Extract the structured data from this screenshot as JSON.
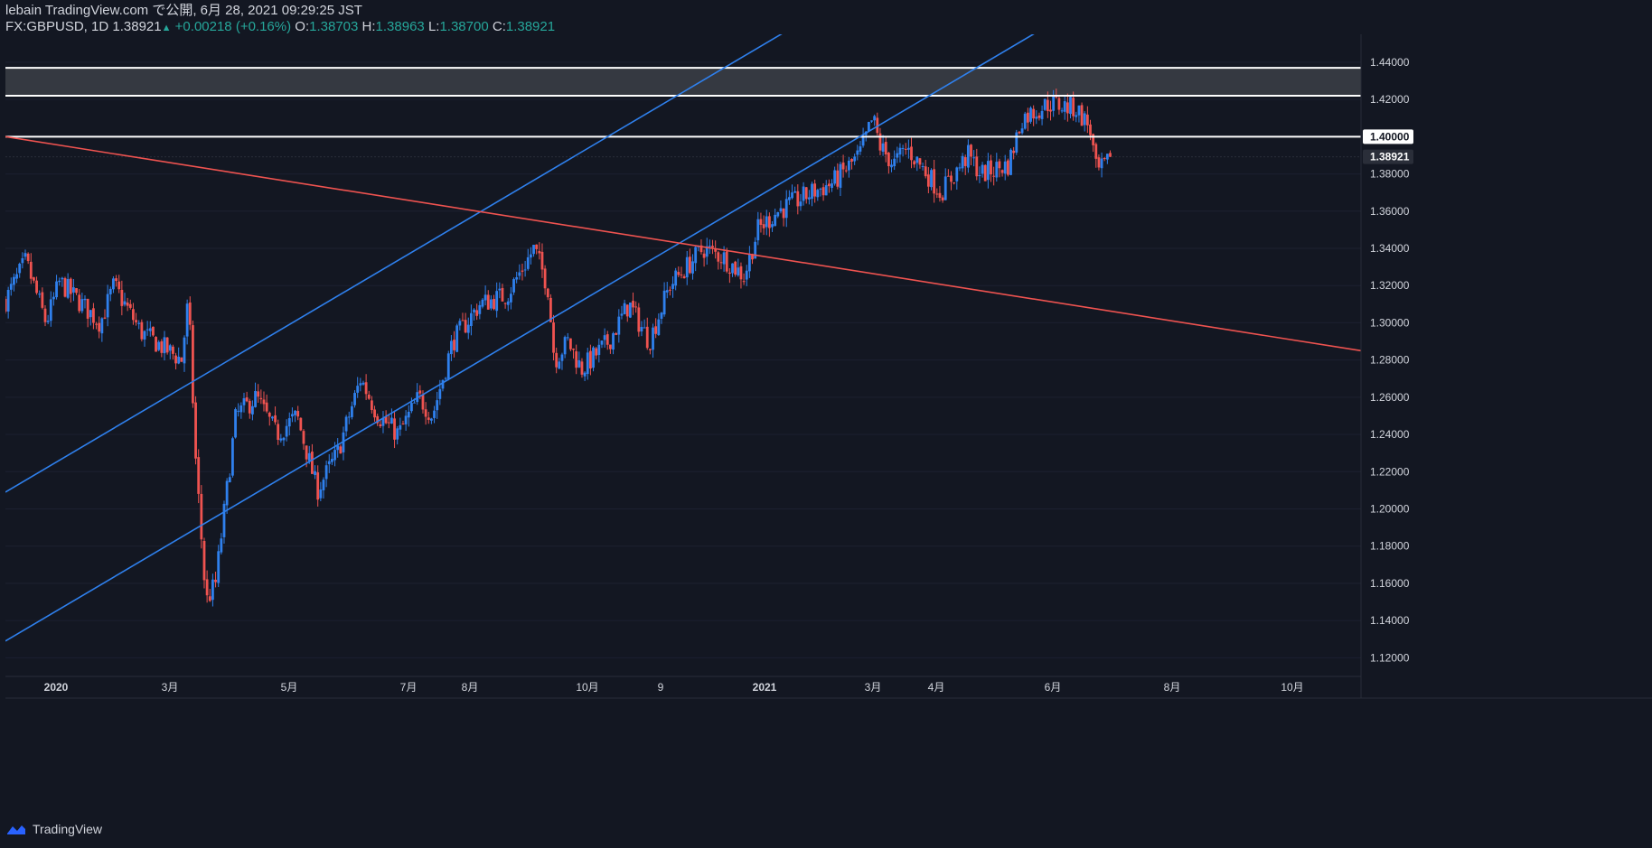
{
  "header": {
    "line1": "lebain TradingView.com で公開, 6月 28, 2021 09:29:25 JST",
    "symbol": "FX:GBPUSD, 1D",
    "last": "1.38921",
    "change_arrow": "▲",
    "change": "+0.00218 (+0.16%)",
    "o_label": "O:",
    "o_val": "1.38703",
    "h_label": "H:",
    "h_val": "1.38963",
    "l_label": "L:",
    "l_val": "1.38700",
    "c_label": "C:",
    "c_val": "1.38921"
  },
  "footer": {
    "brand": "TradingView"
  },
  "colors": {
    "background": "#131722",
    "up": "#2f80ed",
    "down": "#ef5350",
    "channel": "#2f80ed",
    "trend": "#ef5350",
    "level": "#ffffff",
    "zone": "#3a3d45",
    "axis_text": "#d1d4dc",
    "grid": "#1c2030"
  },
  "chart_data": {
    "type": "candlestick",
    "title": "FX:GBPUSD, 1D",
    "ylim": [
      1.11,
      1.455
    ],
    "y_ticks": [
      "1.12000",
      "1.14000",
      "1.16000",
      "1.18000",
      "1.20000",
      "1.22000",
      "1.24000",
      "1.26000",
      "1.28000",
      "1.30000",
      "1.32000",
      "1.34000",
      "1.36000",
      "1.38000",
      "1.40000",
      "1.42000",
      "1.44000"
    ],
    "x_ticks": [
      "2020",
      "3月",
      "5月",
      "7月",
      "8月",
      "10月",
      "9",
      "2021",
      "3月",
      "4月",
      "6月",
      "8月",
      "10月"
    ],
    "price_labels": [
      {
        "label": "1.40000",
        "value": 1.4,
        "style": "level"
      },
      {
        "label": "1.38921",
        "value": 1.38921,
        "style": "last"
      }
    ],
    "levels": [
      1.4,
      1.422,
      1.437
    ],
    "zone": [
      1.422,
      1.437
    ],
    "channel_lines": [
      {
        "name": "upper-channel",
        "from": [
          0,
          1.209
        ],
        "to": [
          1.0,
          1.639
        ]
      },
      {
        "name": "lower-channel",
        "from": [
          0,
          1.129
        ],
        "to": [
          1.0,
          1.559
        ]
      }
    ],
    "trend_line": {
      "name": "falling-trend",
      "from": [
        0,
        1.4
      ],
      "to": [
        1.0,
        1.285
      ]
    },
    "waypoints": [
      [
        0,
        1.312
      ],
      [
        0.015,
        1.333
      ],
      [
        0.03,
        1.3
      ],
      [
        0.04,
        1.322
      ],
      [
        0.07,
        1.3
      ],
      [
        0.08,
        1.32
      ],
      [
        0.1,
        1.295
      ],
      [
        0.13,
        1.28
      ],
      [
        0.135,
        1.313
      ],
      [
        0.14,
        1.23
      ],
      [
        0.148,
        1.15
      ],
      [
        0.155,
        1.16
      ],
      [
        0.17,
        1.25
      ],
      [
        0.185,
        1.26
      ],
      [
        0.2,
        1.24
      ],
      [
        0.215,
        1.25
      ],
      [
        0.23,
        1.21
      ],
      [
        0.245,
        1.23
      ],
      [
        0.262,
        1.27
      ],
      [
        0.275,
        1.25
      ],
      [
        0.29,
        1.24
      ],
      [
        0.305,
        1.26
      ],
      [
        0.315,
        1.25
      ],
      [
        0.33,
        1.29
      ],
      [
        0.35,
        1.31
      ],
      [
        0.37,
        1.315
      ],
      [
        0.39,
        1.34
      ],
      [
        0.4,
        1.32
      ],
      [
        0.405,
        1.28
      ],
      [
        0.415,
        1.29
      ],
      [
        0.425,
        1.275
      ],
      [
        0.445,
        1.29
      ],
      [
        0.46,
        1.31
      ],
      [
        0.475,
        1.29
      ],
      [
        0.49,
        1.32
      ],
      [
        0.515,
        1.34
      ],
      [
        0.53,
        1.335
      ],
      [
        0.545,
        1.325
      ],
      [
        0.555,
        1.35
      ],
      [
        0.57,
        1.36
      ],
      [
        0.595,
        1.37
      ],
      [
        0.61,
        1.375
      ],
      [
        0.63,
        1.39
      ],
      [
        0.64,
        1.41
      ],
      [
        0.645,
        1.395
      ],
      [
        0.655,
        1.385
      ],
      [
        0.665,
        1.394
      ],
      [
        0.68,
        1.38
      ],
      [
        0.69,
        1.37
      ],
      [
        0.71,
        1.39
      ],
      [
        0.72,
        1.38
      ],
      [
        0.74,
        1.385
      ],
      [
        0.75,
        1.41
      ],
      [
        0.77,
        1.418
      ],
      [
        0.79,
        1.415
      ],
      [
        0.8,
        1.405
      ],
      [
        0.805,
        1.38
      ],
      [
        0.815,
        1.387
      ]
    ],
    "start_value": 1.312,
    "end_value": 1.38921,
    "n_candles": 390
  }
}
